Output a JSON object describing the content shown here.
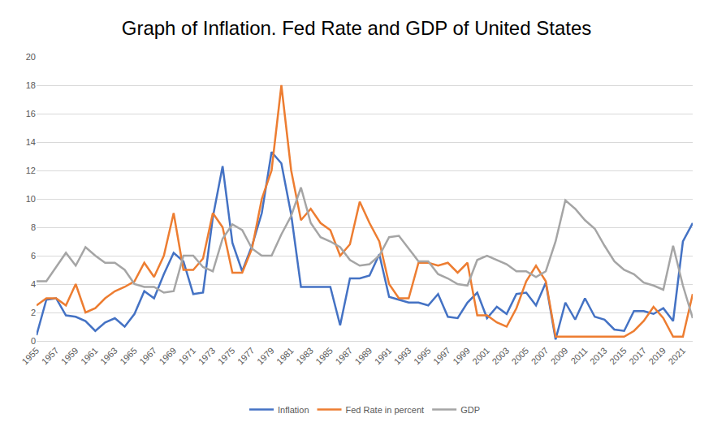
{
  "chart_data": {
    "type": "line",
    "title": "Graph of Inflation. Fed Rate and GDP of United States",
    "x": [
      1955,
      1956,
      1957,
      1958,
      1959,
      1960,
      1961,
      1962,
      1963,
      1964,
      1965,
      1966,
      1967,
      1968,
      1969,
      1970,
      1971,
      1972,
      1973,
      1974,
      1975,
      1976,
      1977,
      1978,
      1979,
      1980,
      1981,
      1982,
      1983,
      1984,
      1985,
      1986,
      1987,
      1988,
      1989,
      1990,
      1991,
      1992,
      1993,
      1994,
      1995,
      1996,
      1997,
      1998,
      1999,
      2000,
      2001,
      2002,
      2003,
      2004,
      2005,
      2006,
      2007,
      2008,
      2009,
      2010,
      2011,
      2012,
      2013,
      2014,
      2015,
      2016,
      2017,
      2018,
      2019,
      2020,
      2021,
      2022
    ],
    "series": [
      {
        "name": "Inflation",
        "color": "#4472c4",
        "values": [
          0.4,
          2.9,
          3.0,
          1.8,
          1.7,
          1.4,
          0.7,
          1.3,
          1.6,
          1.0,
          1.9,
          3.5,
          3.0,
          4.7,
          6.2,
          5.6,
          3.3,
          3.4,
          8.7,
          12.3,
          6.9,
          4.9,
          6.7,
          9.0,
          13.3,
          12.5,
          8.9,
          3.8,
          3.8,
          3.8,
          3.8,
          1.1,
          4.4,
          4.4,
          4.6,
          6.1,
          3.1,
          2.9,
          2.7,
          2.7,
          2.5,
          3.3,
          1.7,
          1.6,
          2.7,
          3.4,
          1.6,
          2.4,
          1.9,
          3.3,
          3.4,
          2.5,
          4.1,
          0.1,
          2.7,
          1.5,
          3.0,
          1.7,
          1.5,
          0.8,
          0.7,
          2.1,
          2.1,
          1.9,
          2.3,
          1.4,
          7.0,
          8.3
        ]
      },
      {
        "name": "Fed Rate in percent",
        "color": "#ed7d31",
        "values": [
          2.5,
          3.0,
          3.0,
          2.5,
          4.0,
          2.0,
          2.3,
          3.0,
          3.5,
          3.8,
          4.2,
          5.5,
          4.5,
          6.0,
          9.0,
          5.0,
          5.0,
          5.8,
          9.0,
          8.0,
          4.8,
          4.8,
          6.5,
          10.0,
          12.0,
          18.0,
          12.0,
          8.5,
          9.3,
          8.3,
          7.8,
          6.0,
          6.8,
          9.8,
          8.3,
          7.0,
          4.0,
          3.0,
          3.0,
          5.5,
          5.5,
          5.3,
          5.5,
          4.8,
          5.5,
          1.8,
          1.8,
          1.3,
          1.0,
          2.3,
          4.2,
          5.3,
          4.2,
          0.3,
          0.3,
          0.3,
          0.3,
          0.3,
          0.3,
          0.3,
          0.3,
          0.7,
          1.4,
          2.4,
          1.6,
          0.3,
          0.3,
          3.3
        ]
      },
      {
        "name": "GDP",
        "color": "#a5a5a5",
        "values": [
          4.2,
          4.2,
          5.2,
          6.2,
          5.3,
          6.6,
          6.0,
          5.5,
          5.5,
          5.0,
          4.0,
          3.8,
          3.8,
          3.4,
          3.5,
          6.0,
          6.0,
          5.2,
          4.9,
          7.2,
          8.2,
          7.8,
          6.5,
          6.0,
          6.0,
          7.5,
          8.8,
          10.8,
          8.3,
          7.3,
          7.0,
          6.6,
          5.7,
          5.3,
          5.4,
          6.0,
          7.3,
          7.4,
          6.5,
          5.6,
          5.6,
          4.7,
          4.4,
          4.0,
          3.9,
          5.7,
          6.0,
          5.7,
          5.4,
          4.9,
          4.9,
          4.5,
          4.9,
          7.0,
          9.9,
          9.3,
          8.5,
          7.9,
          6.7,
          5.6,
          5.0,
          4.7,
          4.1,
          3.9,
          3.6,
          6.7,
          3.9,
          1.6
        ]
      }
    ],
    "xlim": [
      1955,
      2022
    ],
    "xticks": [
      1955,
      1957,
      1959,
      1961,
      1963,
      1965,
      1967,
      1969,
      1971,
      1973,
      1975,
      1977,
      1979,
      1981,
      1983,
      1985,
      1987,
      1989,
      1991,
      1993,
      1995,
      1997,
      1999,
      2001,
      2003,
      2005,
      2007,
      2009,
      2011,
      2013,
      2015,
      2017,
      2019,
      2021
    ],
    "ylim": [
      0,
      20
    ],
    "yticks": [
      0,
      2,
      4,
      6,
      8,
      10,
      12,
      14,
      16,
      18,
      20
    ],
    "grid": true,
    "legend": "bottom"
  }
}
